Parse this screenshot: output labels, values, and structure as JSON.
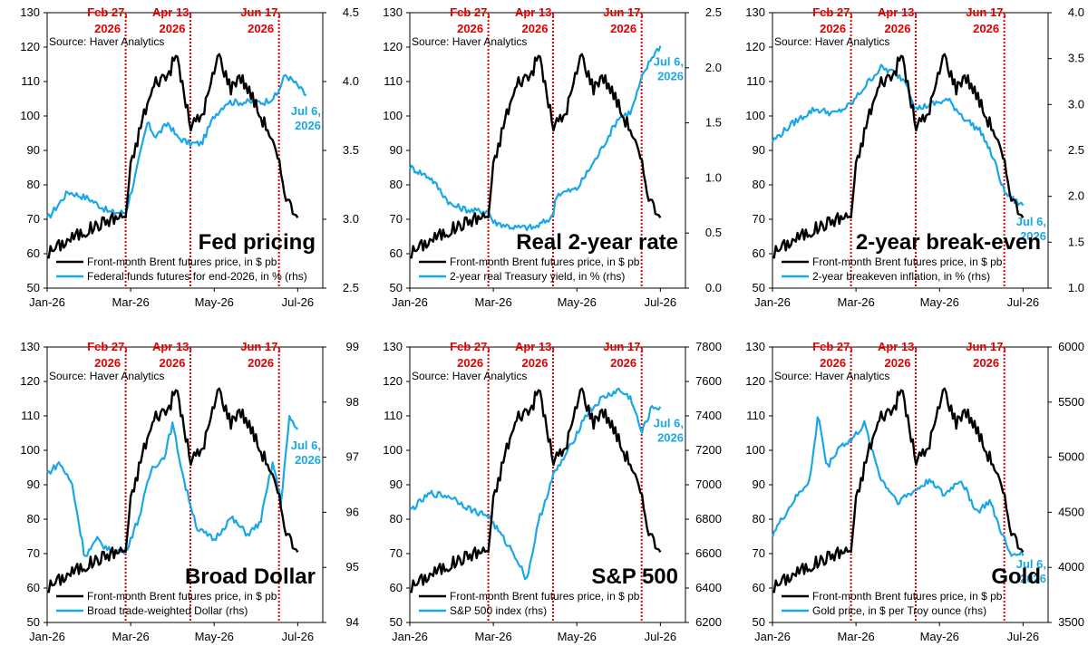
{
  "colors": {
    "brent": "#000000",
    "rhs": "#1aa7e6",
    "event_line": "#e00000"
  },
  "source": "Source: Haver Analytics",
  "events": [
    {
      "month": 1.88,
      "line1": "Feb 27,",
      "line2": "2026"
    },
    {
      "month": 3.43,
      "line1": "Apr 13,",
      "line2": "2026"
    },
    {
      "month": 5.55,
      "line1": "Jun 17,",
      "line2": "2026"
    }
  ],
  "x_ticks": [
    "Jan-26",
    "Mar-26",
    "May-26",
    "Jul-26"
  ],
  "brent_anchors": [
    [
      0,
      60
    ],
    [
      0.5,
      64
    ],
    [
      1,
      67
    ],
    [
      1.5,
      70
    ],
    [
      1.88,
      71
    ],
    [
      2.0,
      85
    ],
    [
      2.3,
      100
    ],
    [
      2.6,
      110
    ],
    [
      2.9,
      112
    ],
    [
      3.1,
      118
    ],
    [
      3.3,
      105
    ],
    [
      3.43,
      97
    ],
    [
      3.7,
      100
    ],
    [
      3.9,
      108
    ],
    [
      4.1,
      118
    ],
    [
      4.4,
      108
    ],
    [
      4.6,
      112
    ],
    [
      4.9,
      106
    ],
    [
      5.1,
      100
    ],
    [
      5.3,
      96
    ],
    [
      5.55,
      86
    ],
    [
      5.7,
      78
    ],
    [
      5.85,
      73
    ],
    [
      6.0,
      72
    ]
  ],
  "chart_data": [
    {
      "type": "line",
      "title": "Fed pricing",
      "ylim_left": [
        50,
        130
      ],
      "ylim_right": [
        2.5,
        4.5
      ],
      "yticks_left": [
        "50",
        "60",
        "70",
        "80",
        "90",
        "100",
        "110",
        "120",
        "130"
      ],
      "yticks_right": [
        "2.5",
        "3.0",
        "3.5",
        "4.0",
        "4.5"
      ],
      "end_label": [
        "Jul 6,",
        "2026"
      ],
      "series": [
        {
          "name": "Front-month Brent futures price, in $ pb",
          "axis": "left"
        },
        {
          "name": "Federal funds futures for end-2026, in % (rhs)",
          "axis": "right",
          "anchors": [
            [
              0,
              3.0
            ],
            [
              0.5,
              3.2
            ],
            [
              1,
              3.15
            ],
            [
              1.5,
              3.05
            ],
            [
              1.88,
              3.05
            ],
            [
              2.1,
              3.3
            ],
            [
              2.4,
              3.7
            ],
            [
              2.6,
              3.6
            ],
            [
              2.9,
              3.7
            ],
            [
              3.1,
              3.6
            ],
            [
              3.4,
              3.55
            ],
            [
              3.7,
              3.55
            ],
            [
              4.0,
              3.75
            ],
            [
              4.3,
              3.85
            ],
            [
              4.6,
              3.85
            ],
            [
              4.9,
              3.85
            ],
            [
              5.2,
              3.85
            ],
            [
              5.5,
              3.9
            ],
            [
              5.7,
              4.05
            ],
            [
              5.9,
              4.0
            ],
            [
              6.2,
              3.9
            ]
          ]
        }
      ]
    },
    {
      "type": "line",
      "title": "Real 2-year rate",
      "ylim_left": [
        50,
        130
      ],
      "ylim_right": [
        0.0,
        2.5
      ],
      "yticks_left": [
        "50",
        "60",
        "70",
        "80",
        "90",
        "100",
        "110",
        "120",
        "130"
      ],
      "yticks_right": [
        "0.0",
        "0.5",
        "1.0",
        "1.5",
        "2.0",
        "2.5"
      ],
      "end_label": [
        "Jul 6,",
        "2026"
      ],
      "series": [
        {
          "name": "Front-month Brent futures price, in $ pb",
          "axis": "left"
        },
        {
          "name": "2-year real Treasury yield, in % (rhs)",
          "axis": "right",
          "anchors": [
            [
              0,
              1.1
            ],
            [
              0.5,
              1.0
            ],
            [
              1,
              0.75
            ],
            [
              1.5,
              0.7
            ],
            [
              1.88,
              0.7
            ],
            [
              2.0,
              0.6
            ],
            [
              2.5,
              0.55
            ],
            [
              3.0,
              0.55
            ],
            [
              3.43,
              0.65
            ],
            [
              3.5,
              0.85
            ],
            [
              4.0,
              0.9
            ],
            [
              4.5,
              1.2
            ],
            [
              5.0,
              1.55
            ],
            [
              5.3,
              1.6
            ],
            [
              5.55,
              1.9
            ],
            [
              5.8,
              2.1
            ],
            [
              6.0,
              2.2
            ]
          ]
        }
      ]
    },
    {
      "type": "line",
      "title": "2-year break-even",
      "ylim_left": [
        50,
        130
      ],
      "ylim_right": [
        1.0,
        4.0
      ],
      "yticks_left": [
        "50",
        "60",
        "70",
        "80",
        "90",
        "100",
        "110",
        "120",
        "130"
      ],
      "yticks_right": [
        "1.0",
        "1.5",
        "2.0",
        "2.5",
        "3.0",
        "3.5",
        "4.0"
      ],
      "end_label": [
        "Jul 6,",
        "2026"
      ],
      "series": [
        {
          "name": "Front-month Brent futures price, in $ pb",
          "axis": "left"
        },
        {
          "name": "2-year breakeven inflation, in % (rhs)",
          "axis": "right",
          "anchors": [
            [
              0,
              2.6
            ],
            [
              0.5,
              2.8
            ],
            [
              1,
              2.95
            ],
            [
              1.5,
              2.9
            ],
            [
              1.88,
              3.0
            ],
            [
              2.3,
              3.25
            ],
            [
              2.6,
              3.4
            ],
            [
              2.9,
              3.35
            ],
            [
              3.2,
              3.25
            ],
            [
              3.43,
              2.95
            ],
            [
              3.8,
              3.0
            ],
            [
              4.2,
              3.05
            ],
            [
              4.6,
              2.85
            ],
            [
              5.0,
              2.7
            ],
            [
              5.3,
              2.4
            ],
            [
              5.55,
              2.05
            ],
            [
              5.8,
              1.95
            ],
            [
              6.0,
              1.9
            ]
          ]
        }
      ]
    },
    {
      "type": "line",
      "title": "Broad Dollar",
      "ylim_left": [
        50,
        130
      ],
      "ylim_right": [
        94,
        99
      ],
      "yticks_left": [
        "50",
        "60",
        "70",
        "80",
        "90",
        "100",
        "110",
        "120",
        "130"
      ],
      "yticks_right": [
        "94",
        "95",
        "96",
        "97",
        "98",
        "99"
      ],
      "end_label": [
        "Jul 6,",
        "2026"
      ],
      "series": [
        {
          "name": "Front-month Brent futures price, in $ pb",
          "axis": "left"
        },
        {
          "name": "Broad trade-weighted Dollar (rhs)",
          "axis": "right",
          "anchors": [
            [
              0,
              96.7
            ],
            [
              0.3,
              96.9
            ],
            [
              0.6,
              96.5
            ],
            [
              0.9,
              95.2
            ],
            [
              1.2,
              95.5
            ],
            [
              1.5,
              95.3
            ],
            [
              1.88,
              95.3
            ],
            [
              2.2,
              95.9
            ],
            [
              2.5,
              96.8
            ],
            [
              2.8,
              97.0
            ],
            [
              3.0,
              97.6
            ],
            [
              3.3,
              96.5
            ],
            [
              3.6,
              95.7
            ],
            [
              4.0,
              95.5
            ],
            [
              4.4,
              95.9
            ],
            [
              4.8,
              95.6
            ],
            [
              5.1,
              95.8
            ],
            [
              5.4,
              96.9
            ],
            [
              5.6,
              96.2
            ],
            [
              5.8,
              97.7
            ],
            [
              6.0,
              97.5
            ]
          ]
        }
      ]
    },
    {
      "type": "line",
      "title": "S&P 500",
      "ylim_left": [
        50,
        130
      ],
      "ylim_right": [
        6200,
        7800
      ],
      "yticks_left": [
        "50",
        "60",
        "70",
        "80",
        "90",
        "100",
        "110",
        "120",
        "130"
      ],
      "yticks_right": [
        "6200",
        "6400",
        "6600",
        "6800",
        "7000",
        "7200",
        "7400",
        "7600",
        "7800"
      ],
      "end_label": [
        "Jul 6,",
        "2026"
      ],
      "series": [
        {
          "name": "Front-month Brent futures price, in $ pb",
          "axis": "left"
        },
        {
          "name": "S&P 500 index (rhs)",
          "axis": "right",
          "anchors": [
            [
              0,
              6850
            ],
            [
              0.5,
              6950
            ],
            [
              1,
              6930
            ],
            [
              1.5,
              6850
            ],
            [
              1.88,
              6820
            ],
            [
              2.2,
              6700
            ],
            [
              2.5,
              6600
            ],
            [
              2.8,
              6450
            ],
            [
              3.1,
              6800
            ],
            [
              3.43,
              7050
            ],
            [
              3.8,
              7200
            ],
            [
              4.2,
              7400
            ],
            [
              4.6,
              7500
            ],
            [
              5.0,
              7550
            ],
            [
              5.3,
              7500
            ],
            [
              5.55,
              7300
            ],
            [
              5.8,
              7450
            ],
            [
              6.0,
              7450
            ]
          ]
        }
      ]
    },
    {
      "type": "line",
      "title": "Gold",
      "ylim_left": [
        50,
        130
      ],
      "ylim_right": [
        3500,
        6000
      ],
      "yticks_left": [
        "50",
        "60",
        "70",
        "80",
        "90",
        "100",
        "110",
        "120",
        "130"
      ],
      "yticks_right": [
        "3500",
        "4000",
        "4500",
        "5000",
        "5500",
        "6000"
      ],
      "end_label": [
        "Jul 6,",
        "2026"
      ],
      "series": [
        {
          "name": "Front-month Brent futures price, in $ pb",
          "axis": "left"
        },
        {
          "name": "Gold price, in $ per Troy ounce (rhs)",
          "axis": "right",
          "anchors": [
            [
              0,
              4300
            ],
            [
              0.5,
              4600
            ],
            [
              0.9,
              4800
            ],
            [
              1.1,
              5400
            ],
            [
              1.3,
              4900
            ],
            [
              1.6,
              5100
            ],
            [
              1.88,
              5150
            ],
            [
              2.2,
              5300
            ],
            [
              2.6,
              4800
            ],
            [
              3.0,
              4600
            ],
            [
              3.43,
              4700
            ],
            [
              3.8,
              4800
            ],
            [
              4.1,
              4650
            ],
            [
              4.5,
              4800
            ],
            [
              4.9,
              4500
            ],
            [
              5.2,
              4600
            ],
            [
              5.5,
              4300
            ],
            [
              5.7,
              4100
            ],
            [
              5.9,
              4150
            ],
            [
              6.0,
              4100
            ]
          ]
        }
      ]
    }
  ]
}
